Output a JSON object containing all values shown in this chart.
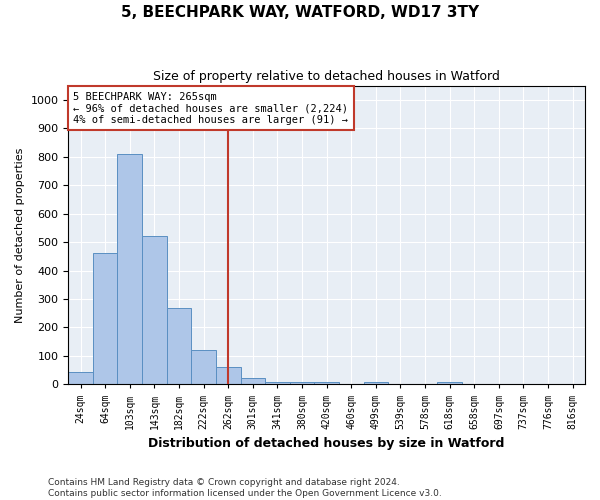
{
  "title": "5, BEECHPARK WAY, WATFORD, WD17 3TY",
  "subtitle": "Size of property relative to detached houses in Watford",
  "xlabel": "Distribution of detached houses by size in Watford",
  "ylabel": "Number of detached properties",
  "bar_color": "#aec6e8",
  "bar_edge_color": "#5a8fc2",
  "categories": [
    "24sqm",
    "64sqm",
    "103sqm",
    "143sqm",
    "182sqm",
    "222sqm",
    "262sqm",
    "301sqm",
    "341sqm",
    "380sqm",
    "420sqm",
    "460sqm",
    "499sqm",
    "539sqm",
    "578sqm",
    "618sqm",
    "658sqm",
    "697sqm",
    "737sqm",
    "776sqm",
    "816sqm"
  ],
  "values": [
    45,
    460,
    810,
    520,
    270,
    120,
    60,
    22,
    10,
    8,
    10,
    0,
    8,
    0,
    0,
    7,
    0,
    0,
    0,
    0,
    0
  ],
  "vline_color": "#c0392b",
  "annotation_text": "5 BEECHPARK WAY: 265sqm\n← 96% of detached houses are smaller (2,224)\n4% of semi-detached houses are larger (91) →",
  "annotation_box_color": "#ffffff",
  "annotation_box_edge_color": "#c0392b",
  "ylim": [
    0,
    1050
  ],
  "yticks": [
    0,
    100,
    200,
    300,
    400,
    500,
    600,
    700,
    800,
    900,
    1000
  ],
  "background_color": "#e8eef5",
  "footnote1": "Contains HM Land Registry data © Crown copyright and database right 2024.",
  "footnote2": "Contains public sector information licensed under the Open Government Licence v3.0."
}
